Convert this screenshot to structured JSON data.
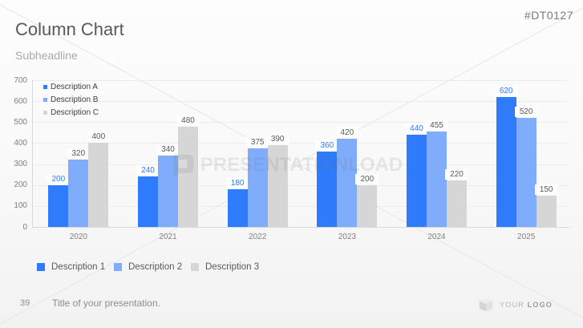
{
  "header": {
    "title": "Column Chart",
    "subtitle": "Subheadline",
    "product_code": "#DT0127"
  },
  "chart_data": {
    "type": "bar",
    "categories": [
      "2020",
      "2021",
      "2022",
      "2023",
      "2024",
      "2025"
    ],
    "series": [
      {
        "name": "Description A",
        "color": "#2e7bfb",
        "label_color": "#2e7bfb",
        "values": [
          200,
          240,
          180,
          360,
          440,
          620
        ]
      },
      {
        "name": "Description B",
        "color": "#7fadfc",
        "label_color": "#595959",
        "values": [
          320,
          340,
          375,
          420,
          455,
          520
        ]
      },
      {
        "name": "Description C",
        "color": "#d6d6d6",
        "label_color": "#595959",
        "values": [
          400,
          480,
          390,
          200,
          220,
          150
        ]
      }
    ],
    "ylim": [
      0,
      700
    ],
    "ytick_step": 100,
    "grid": true,
    "legend_position": "top-left-inside",
    "data_labels": true
  },
  "bottom_legend": [
    {
      "label": "Description 1",
      "color": "#2e7bfb"
    },
    {
      "label": "Description 2",
      "color": "#7fadfc"
    },
    {
      "label": "Description 3",
      "color": "#d6d6d6"
    }
  ],
  "watermark": {
    "text": "PRESENTATIONLOAD"
  },
  "footer": {
    "page_number": "39",
    "title": "Title of your presentation.",
    "logo_text_1": "YOUR",
    "logo_text_2": "LOGO"
  }
}
